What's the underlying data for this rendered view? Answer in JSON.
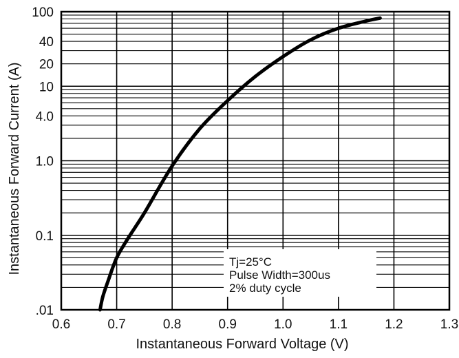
{
  "chart_data": {
    "type": "line",
    "title": "",
    "xlabel": "Instantaneous Forward Voltage (V)",
    "ylabel": "Instantaneous Forward Current (A)",
    "xlim": [
      0.6,
      1.3
    ],
    "ylim": [
      0.01,
      100
    ],
    "yscale": "log",
    "grid": true,
    "x_ticks": [
      0.6,
      0.7,
      0.8,
      0.9,
      1.0,
      1.1,
      1.2,
      1.3
    ],
    "x_tick_labels": [
      "0.6",
      "0.7",
      "0.8",
      "0.9",
      "1.0",
      "1.1",
      "1.2",
      "1.3"
    ],
    "y_ticks": [
      0.01,
      0.1,
      1.0,
      4.0,
      10,
      20,
      40,
      100
    ],
    "y_tick_labels": [
      ".01",
      "0.1",
      "1.0",
      "4.0",
      "10",
      "20",
      "40",
      "100"
    ],
    "series": [
      {
        "name": "",
        "color": "#000000",
        "x": [
          0.67,
          0.675,
          0.685,
          0.7,
          0.72,
          0.75,
          0.8,
          0.85,
          0.9,
          0.95,
          1.0,
          1.05,
          1.1,
          1.15,
          1.175
        ],
        "y": [
          0.01,
          0.015,
          0.025,
          0.05,
          0.09,
          0.2,
          0.85,
          2.7,
          6.4,
          13.5,
          25,
          42,
          60,
          75,
          82
        ]
      }
    ],
    "annotations": [
      "Tj=25°C",
      "Pulse Width=300us",
      "2% duty cycle"
    ]
  }
}
